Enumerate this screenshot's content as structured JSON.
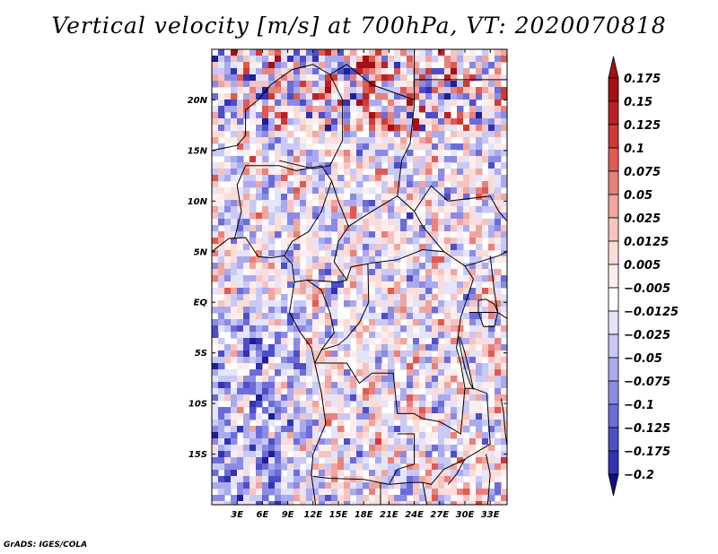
{
  "title": "Vertical velocity [m/s] at 700hPa, VT: 2020070818",
  "credit": "GrADS: IGES/COLA",
  "map": {
    "lon_range": [
      0,
      35
    ],
    "lat_range": [
      -20,
      25
    ],
    "lat_ticks": [
      {
        "value": 20,
        "label": "20N"
      },
      {
        "value": 15,
        "label": "15N"
      },
      {
        "value": 10,
        "label": "10N"
      },
      {
        "value": 5,
        "label": "5N"
      },
      {
        "value": 0,
        "label": "EQ"
      },
      {
        "value": -5,
        "label": "5S"
      },
      {
        "value": -10,
        "label": "10S"
      },
      {
        "value": -15,
        "label": "15S"
      }
    ],
    "lon_ticks": [
      {
        "value": 3,
        "label": "3E"
      },
      {
        "value": 6,
        "label": "6E"
      },
      {
        "value": 9,
        "label": "9E"
      },
      {
        "value": 12,
        "label": "12E"
      },
      {
        "value": 15,
        "label": "15E"
      },
      {
        "value": 18,
        "label": "18E"
      },
      {
        "value": 21,
        "label": "21E"
      },
      {
        "value": 24,
        "label": "24E"
      },
      {
        "value": 27,
        "label": "27E"
      },
      {
        "value": 30,
        "label": "30E"
      },
      {
        "value": 33,
        "label": "33E"
      }
    ]
  },
  "colorbar": {
    "levels": [
      {
        "label": "0.175",
        "color": "#a50f15"
      },
      {
        "label": "0.15",
        "color": "#bd1f26"
      },
      {
        "label": "0.125",
        "color": "#d03a36"
      },
      {
        "label": "0.1",
        "color": "#df5a52"
      },
      {
        "label": "0.075",
        "color": "#e9817a"
      },
      {
        "label": "0.05",
        "color": "#f0a59f"
      },
      {
        "label": "0.025",
        "color": "#f6c4c0"
      },
      {
        "label": "0.0125",
        "color": "#fadcd9"
      },
      {
        "label": "0.005",
        "color": "#fdeeed"
      },
      {
        "label": "−0.005",
        "color": "#ffffff"
      },
      {
        "label": "−0.0125",
        "color": "#e4e4fb"
      },
      {
        "label": "−0.025",
        "color": "#c9c9f5"
      },
      {
        "label": "−0.05",
        "color": "#aaaaee"
      },
      {
        "label": "−0.075",
        "color": "#8b8be4"
      },
      {
        "label": "−0.1",
        "color": "#6c6cd8"
      },
      {
        "label": "−0.125",
        "color": "#4e4ec8"
      },
      {
        "label": "−0.175",
        "color": "#3232b2"
      },
      {
        "label": "−0.2",
        "color": "#1e1e96"
      }
    ],
    "top_color": "#a50f15",
    "bottom_color": "#10107a"
  }
}
